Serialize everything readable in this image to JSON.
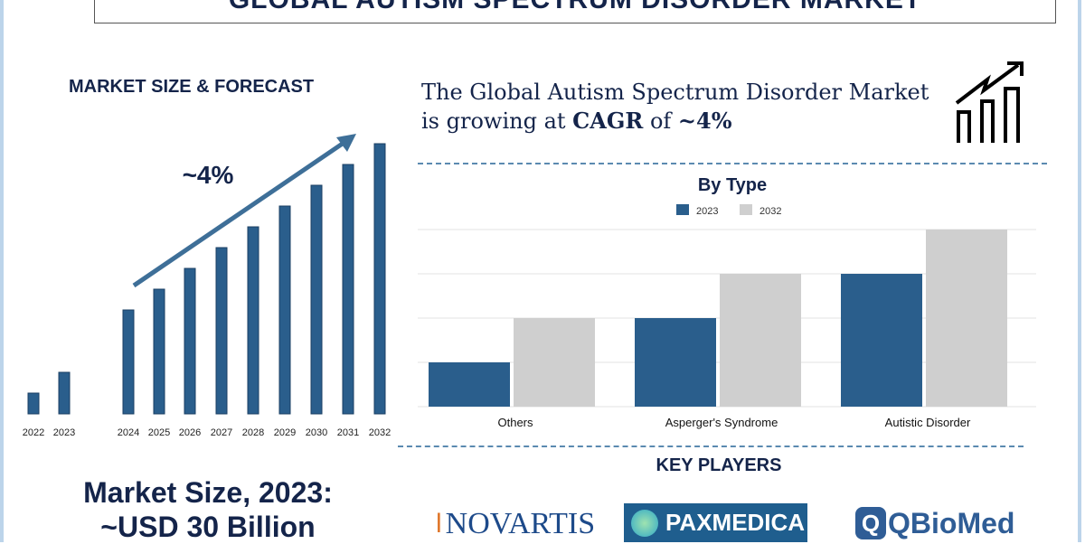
{
  "title": "GLOBAL AUTISM SPECTRUM DISORDER MARKET",
  "left": {
    "heading": "MARKET SIZE & FORECAST",
    "cagr_label": "~4%",
    "market_size_line1": "Market Size, 2023:",
    "market_size_line2": "~USD 30 Billion"
  },
  "summary": {
    "line1": "The Global Autism Spectrum Disorder Market",
    "line2_prefix": "is growing at ",
    "line2_bold": "CAGR",
    "line2_mid": " of ",
    "line2_value": "~4%"
  },
  "key_players": {
    "heading": "KEY PLAYERS",
    "logos": [
      "NOVARTIS",
      "PAXMEDICA",
      "QBioMed"
    ]
  },
  "colors": {
    "navy": "#14244a",
    "bar_blue": "#2a5e8c",
    "bar_grey": "#cfcfcf",
    "arrow": "#3e6f98"
  },
  "chart_data": [
    {
      "type": "bar",
      "title": "",
      "categories": [
        "2022",
        "2023",
        "2024",
        "2025",
        "2026",
        "2027",
        "2028",
        "2029",
        "2030",
        "2031",
        "2032"
      ],
      "values": [
        1,
        2,
        5,
        6,
        7,
        8,
        9,
        10,
        11,
        12,
        13
      ],
      "ylim": [
        0,
        13
      ],
      "xlabel": "",
      "ylabel": "",
      "grid": false
    },
    {
      "type": "bar",
      "title": "By Type",
      "categories": [
        "Others",
        "Asperger's Syndrome",
        "Autistic Disorder"
      ],
      "series": [
        {
          "name": "2023",
          "values": [
            1,
            2,
            3
          ]
        },
        {
          "name": "2032",
          "values": [
            2,
            3,
            4
          ]
        }
      ],
      "ylim": [
        0,
        4
      ],
      "grid": true,
      "legend": "top-center"
    }
  ]
}
